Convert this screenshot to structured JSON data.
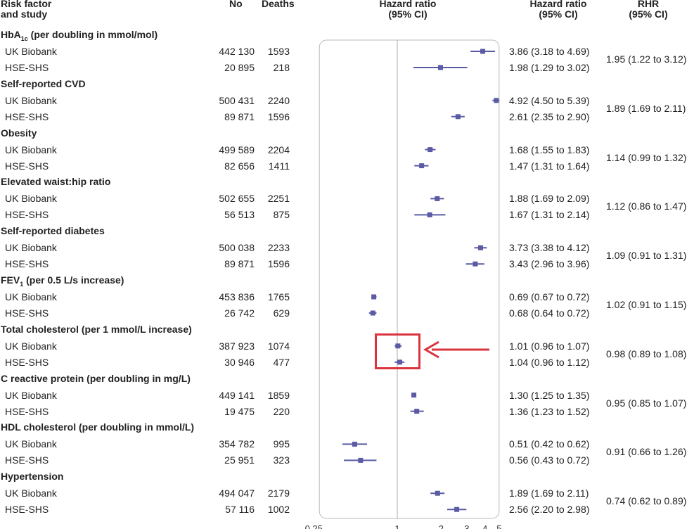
{
  "headers": {
    "risk_factor": [
      "Risk factor",
      "and study"
    ],
    "no": "No",
    "deaths": "Deaths",
    "hazard_ratio_plot": [
      "Hazard ratio",
      "(95% CI)"
    ],
    "hazard_ratio": [
      "Hazard ratio",
      "(95% CI)"
    ],
    "rhr": [
      "RHR",
      "(95% CI)"
    ]
  },
  "annotation": {
    "highlight_color": "#d9343f",
    "target": "Total cholesterol (per 1 mmol/L increase)"
  },
  "chart_data": {
    "type": "forest",
    "x_scale": "log",
    "xlim": [
      0.25,
      5
    ],
    "x_ticks": [
      "0.25",
      "1",
      "2",
      "3",
      "4",
      "5"
    ],
    "reference_line": 1,
    "marker_color": "#5a5aa5",
    "groups": [
      {
        "label": "HbA",
        "label_sub": "1c",
        "label_rest": " (per doubling in mmol/mol)",
        "rhr": "1.95 (1.22 to 3.12)",
        "studies": [
          {
            "name": "UK Biobank",
            "no": "442 130",
            "deaths": "1593",
            "hr": 3.86,
            "lo": 3.18,
            "hi": 4.69,
            "ci_text": "3.86 (3.18 to 4.69)"
          },
          {
            "name": "HSE-SHS",
            "no": "20 895",
            "deaths": "218",
            "hr": 1.98,
            "lo": 1.29,
            "hi": 3.02,
            "ci_text": "1.98 (1.29 to 3.02)"
          }
        ]
      },
      {
        "label": "Self-reported CVD",
        "rhr": "1.89 (1.69 to 2.11)",
        "studies": [
          {
            "name": "UK Biobank",
            "no": "500 431",
            "deaths": "2240",
            "hr": 4.92,
            "lo": 4.5,
            "hi": 5.39,
            "ci_text": "4.92 (4.50 to 5.39)"
          },
          {
            "name": "HSE-SHS",
            "no": "89 871",
            "deaths": "1596",
            "hr": 2.61,
            "lo": 2.35,
            "hi": 2.9,
            "ci_text": "2.61 (2.35 to 2.90)"
          }
        ]
      },
      {
        "label": "Obesity",
        "rhr": "1.14 (0.99 to 1.32)",
        "studies": [
          {
            "name": "UK Biobank",
            "no": "499 589",
            "deaths": "2204",
            "hr": 1.68,
            "lo": 1.55,
            "hi": 1.83,
            "ci_text": "1.68 (1.55 to 1.83)"
          },
          {
            "name": "HSE-SHS",
            "no": "82 656",
            "deaths": "1411",
            "hr": 1.47,
            "lo": 1.31,
            "hi": 1.64,
            "ci_text": "1.47 (1.31 to 1.64)"
          }
        ]
      },
      {
        "label": "Elevated waist:hip ratio",
        "rhr": "1.12 (0.86 to 1.47)",
        "studies": [
          {
            "name": "UK Biobank",
            "no": "502 655",
            "deaths": "2251",
            "hr": 1.88,
            "lo": 1.69,
            "hi": 2.09,
            "ci_text": "1.88 (1.69 to 2.09)"
          },
          {
            "name": "HSE-SHS",
            "no": "56 513",
            "deaths": "875",
            "hr": 1.67,
            "lo": 1.31,
            "hi": 2.14,
            "ci_text": "1.67 (1.31 to 2.14)"
          }
        ]
      },
      {
        "label": "Self-reported diabetes",
        "rhr": "1.09 (0.91 to 1.31)",
        "studies": [
          {
            "name": "UK Biobank",
            "no": "500 038",
            "deaths": "2233",
            "hr": 3.73,
            "lo": 3.38,
            "hi": 4.12,
            "ci_text": "3.73 (3.38 to 4.12)"
          },
          {
            "name": "HSE-SHS",
            "no": "89 871",
            "deaths": "1596",
            "hr": 3.43,
            "lo": 2.96,
            "hi": 3.96,
            "ci_text": "3.43 (2.96 to 3.96)"
          }
        ]
      },
      {
        "label": "FEV",
        "label_sub": "1",
        "label_rest": " (per 0.5 L/s increase)",
        "rhr": "1.02 (0.91 to 1.15)",
        "studies": [
          {
            "name": "UK Biobank",
            "no": "453 836",
            "deaths": "1765",
            "hr": 0.69,
            "lo": 0.67,
            "hi": 0.72,
            "ci_text": "0.69 (0.67 to 0.72)"
          },
          {
            "name": "HSE-SHS",
            "no": "26 742",
            "deaths": "629",
            "hr": 0.68,
            "lo": 0.64,
            "hi": 0.72,
            "ci_text": "0.68 (0.64 to 0.72)"
          }
        ]
      },
      {
        "label": "Total cholesterol (per 1 mmol/L increase)",
        "rhr": "0.98 (0.89 to 1.08)",
        "studies": [
          {
            "name": "UK Biobank",
            "no": "387 923",
            "deaths": "1074",
            "hr": 1.01,
            "lo": 0.96,
            "hi": 1.07,
            "ci_text": "1.01 (0.96 to 1.07)"
          },
          {
            "name": "HSE-SHS",
            "no": "30 946",
            "deaths": "477",
            "hr": 1.04,
            "lo": 0.96,
            "hi": 1.12,
            "ci_text": "1.04 (0.96 to 1.12)"
          }
        ]
      },
      {
        "label": "C reactive protein (per doubling in mg/L)",
        "rhr": "0.95 (0.85 to 1.07)",
        "studies": [
          {
            "name": "UK Biobank",
            "no": "449 141",
            "deaths": "1859",
            "hr": 1.3,
            "lo": 1.25,
            "hi": 1.35,
            "ci_text": "1.30 (1.25 to 1.35)"
          },
          {
            "name": "HSE-SHS",
            "no": "19 475",
            "deaths": "220",
            "hr": 1.36,
            "lo": 1.23,
            "hi": 1.52,
            "ci_text": "1.36 (1.23 to 1.52)"
          }
        ]
      },
      {
        "label": "HDL cholesterol (per doubling in mmol/L)",
        "rhr": "0.91 (0.66 to 1.26)",
        "studies": [
          {
            "name": "UK Biobank",
            "no": "354 782",
            "deaths": "995",
            "hr": 0.51,
            "lo": 0.42,
            "hi": 0.62,
            "ci_text": "0.51 (0.42 to 0.62)"
          },
          {
            "name": "HSE-SHS",
            "no": "25 951",
            "deaths": "323",
            "hr": 0.56,
            "lo": 0.43,
            "hi": 0.72,
            "ci_text": "0.56 (0.43 to 0.72)"
          }
        ]
      },
      {
        "label": "Hypertension",
        "rhr": "0.74 (0.62 to 0.89)",
        "studies": [
          {
            "name": "UK Biobank",
            "no": "494 047",
            "deaths": "2179",
            "hr": 1.89,
            "lo": 1.69,
            "hi": 2.11,
            "ci_text": "1.89 (1.69 to 2.11)"
          },
          {
            "name": "HSE-SHS",
            "no": "57 116",
            "deaths": "1002",
            "hr": 2.56,
            "lo": 2.2,
            "hi": 2.98,
            "ci_text": "2.56 (2.20 to 2.98)"
          }
        ]
      }
    ]
  }
}
